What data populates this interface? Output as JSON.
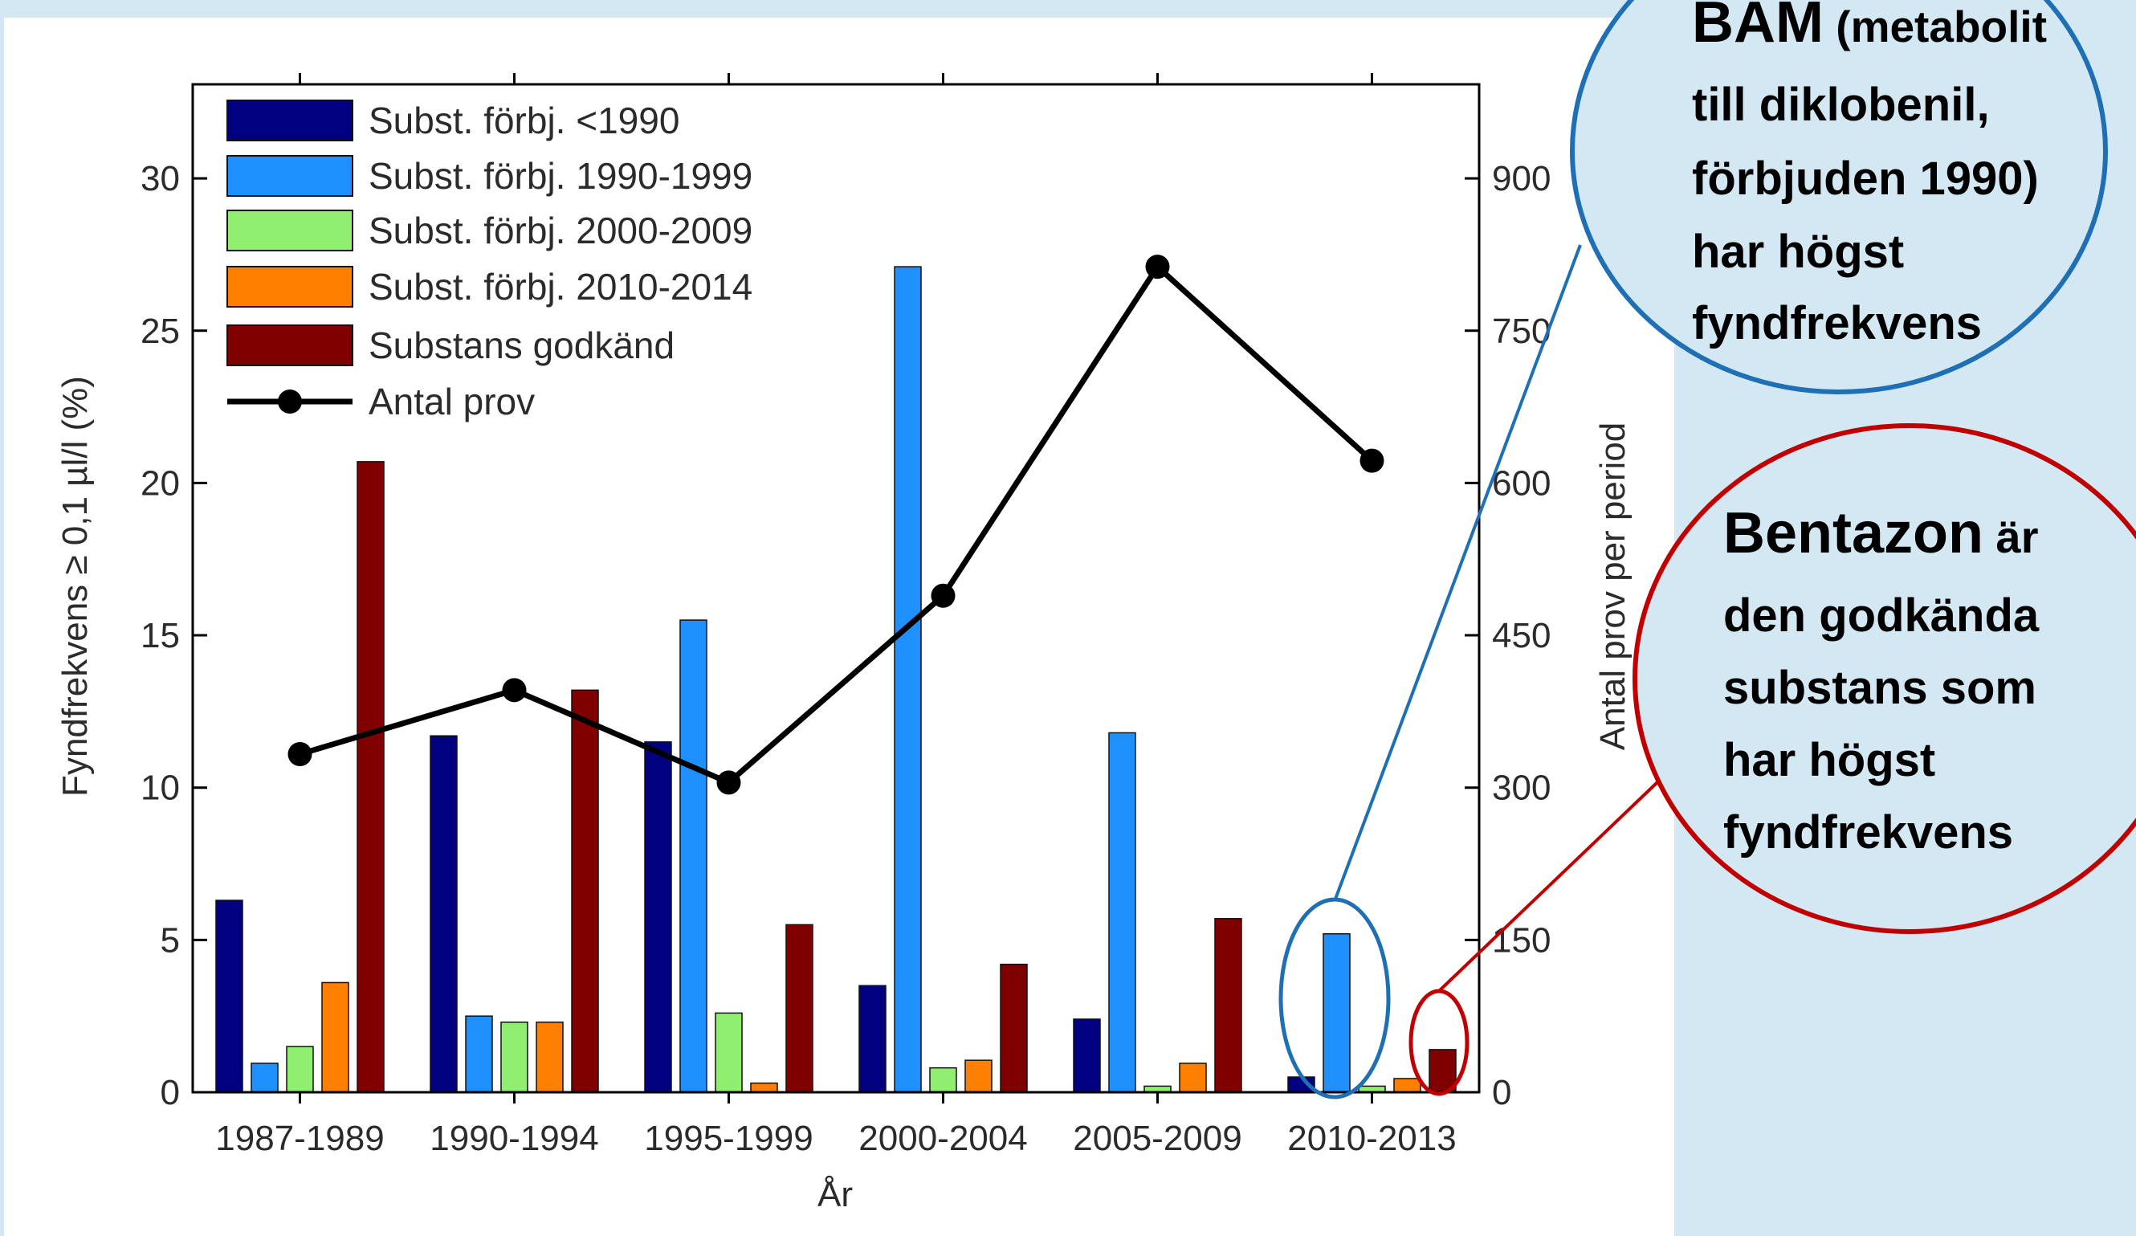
{
  "chart_data": {
    "type": "bar",
    "categories": [
      "1987-1989",
      "1990-1994",
      "1995-1999",
      "2000-2004",
      "2005-2009",
      "2010-2013"
    ],
    "xlabel": "År",
    "ylabel": "Fyndfrekvens ≥ 0,1 µl/l (%)",
    "ylabel_right": "Antal prov per period",
    "ylim": [
      0,
      30
    ],
    "ylim_right": [
      0,
      900
    ],
    "yticks": [
      0,
      5,
      10,
      15,
      20,
      25,
      30
    ],
    "yticks_right": [
      0,
      150,
      300,
      450,
      600,
      750,
      900
    ],
    "legend_position": "top-left",
    "series": [
      {
        "name": "Subst. förbj. <1990",
        "color": "#000080",
        "values": [
          6.3,
          11.7,
          11.5,
          3.5,
          2.4,
          0.5
        ]
      },
      {
        "name": "Subst. förbj. 1990-1999",
        "color": "#1e90ff",
        "values": [
          0.95,
          2.5,
          15.5,
          27.1,
          11.8,
          5.2
        ]
      },
      {
        "name": "Subst. förbj. 2000-2009",
        "color": "#90ee70",
        "values": [
          1.5,
          2.3,
          2.6,
          0.8,
          0.2,
          0.2
        ]
      },
      {
        "name": "Subst. förbj. 2010-2014",
        "color": "#ff7f00",
        "values": [
          3.6,
          2.3,
          0.3,
          1.05,
          0.95,
          0.45
        ]
      },
      {
        "name": "Substans godkänd",
        "color": "#800000",
        "values": [
          20.7,
          13.2,
          5.5,
          4.2,
          5.7,
          1.4
        ]
      }
    ],
    "line_series": {
      "name": "Antal prov",
      "color": "#000000",
      "axis": "right",
      "values": [
        333,
        396,
        305,
        489,
        813,
        622
      ]
    }
  },
  "callouts": {
    "bam": {
      "line1_bold": "BAM",
      "line1_rest": " (metabolit",
      "line2": "till diklobenil,",
      "line3": "förbjuden 1990)",
      "line4": "har högst",
      "line5": "fyndfrekvens",
      "color": "#1f6fb5"
    },
    "bentazon": {
      "line1_bold": "Bentazon",
      "line1_rest": " är",
      "line2": "den godkända",
      "line3": "substans som",
      "line4": "har högst",
      "line5": "fyndfrekvens",
      "color": "#c00000"
    }
  }
}
